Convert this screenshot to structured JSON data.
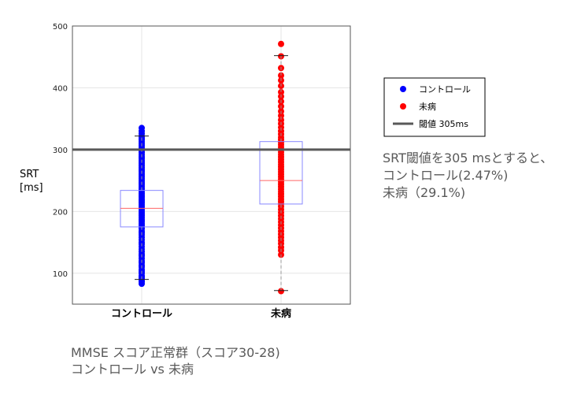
{
  "chart_data": {
    "type": "box",
    "ylabel": "SRT\n[ms]",
    "ylabel_lines": [
      "SRT",
      "[ms]"
    ],
    "ylim": [
      50,
      500
    ],
    "yticks": [
      100,
      200,
      300,
      400,
      500
    ],
    "grid": true,
    "categories": [
      "コントロール",
      "未病"
    ],
    "series": [
      {
        "name": "コントロール",
        "color": "#0000ff",
        "box": {
          "whisker_low": 90,
          "q1": 175,
          "median": 205,
          "q3": 234,
          "whisker_high": 322
        },
        "points": [
          83,
          86,
          88,
          91,
          94,
          96,
          100,
          103,
          106,
          110,
          113,
          117,
          120,
          124,
          128,
          131,
          135,
          139,
          143,
          147,
          150,
          154,
          158,
          162,
          165,
          168,
          172,
          175,
          178,
          181,
          184,
          187,
          190,
          193,
          196,
          199,
          202,
          205,
          208,
          211,
          214,
          217,
          220,
          223,
          226,
          229,
          232,
          235,
          238,
          241,
          244,
          247,
          250,
          253,
          256,
          259,
          262,
          265,
          268,
          271,
          274,
          277,
          280,
          283,
          286,
          289,
          292,
          295,
          298,
          301,
          304,
          307,
          310,
          313,
          316,
          319,
          322,
          326,
          330,
          335
        ]
      },
      {
        "name": "未病",
        "color": "#ff0000",
        "box": {
          "whisker_low": 72,
          "q1": 212,
          "median": 250,
          "q3": 313,
          "whisker_high": 452
        },
        "points": [
          71,
          130,
          137,
          142,
          148,
          153,
          158,
          163,
          168,
          173,
          178,
          183,
          188,
          193,
          198,
          203,
          208,
          212,
          216,
          220,
          224,
          228,
          232,
          236,
          240,
          244,
          248,
          252,
          256,
          260,
          264,
          268,
          272,
          276,
          280,
          284,
          288,
          292,
          296,
          300,
          304,
          308,
          312,
          316,
          320,
          325,
          330,
          336,
          342,
          348,
          355,
          362,
          370,
          378,
          386,
          393,
          403,
          412,
          420,
          432,
          451,
          471
        ]
      }
    ],
    "threshold": {
      "value": 305,
      "label": "閾値 305ms",
      "color": "#595959"
    },
    "legend": {
      "placement": "right",
      "entries": [
        {
          "label": "コントロール",
          "color": "#0000ff",
          "marker": "dot"
        },
        {
          "label": "未病",
          "color": "#ff0000",
          "marker": "dot"
        },
        {
          "label": "閾値 305ms",
          "color": "#595959",
          "marker": "line"
        }
      ]
    },
    "box_color": "#8888ff",
    "median_color": "#ff6666",
    "whisker_color": "#999999"
  },
  "annotation": {
    "lines": [
      "SRT閾値を305 msとすると、",
      "コントロール(2.47%)",
      "未病（29.1%)"
    ]
  },
  "caption": {
    "lines": [
      "MMSE スコア正常群（スコア30-28)",
      "コントロール vs 未病"
    ]
  }
}
